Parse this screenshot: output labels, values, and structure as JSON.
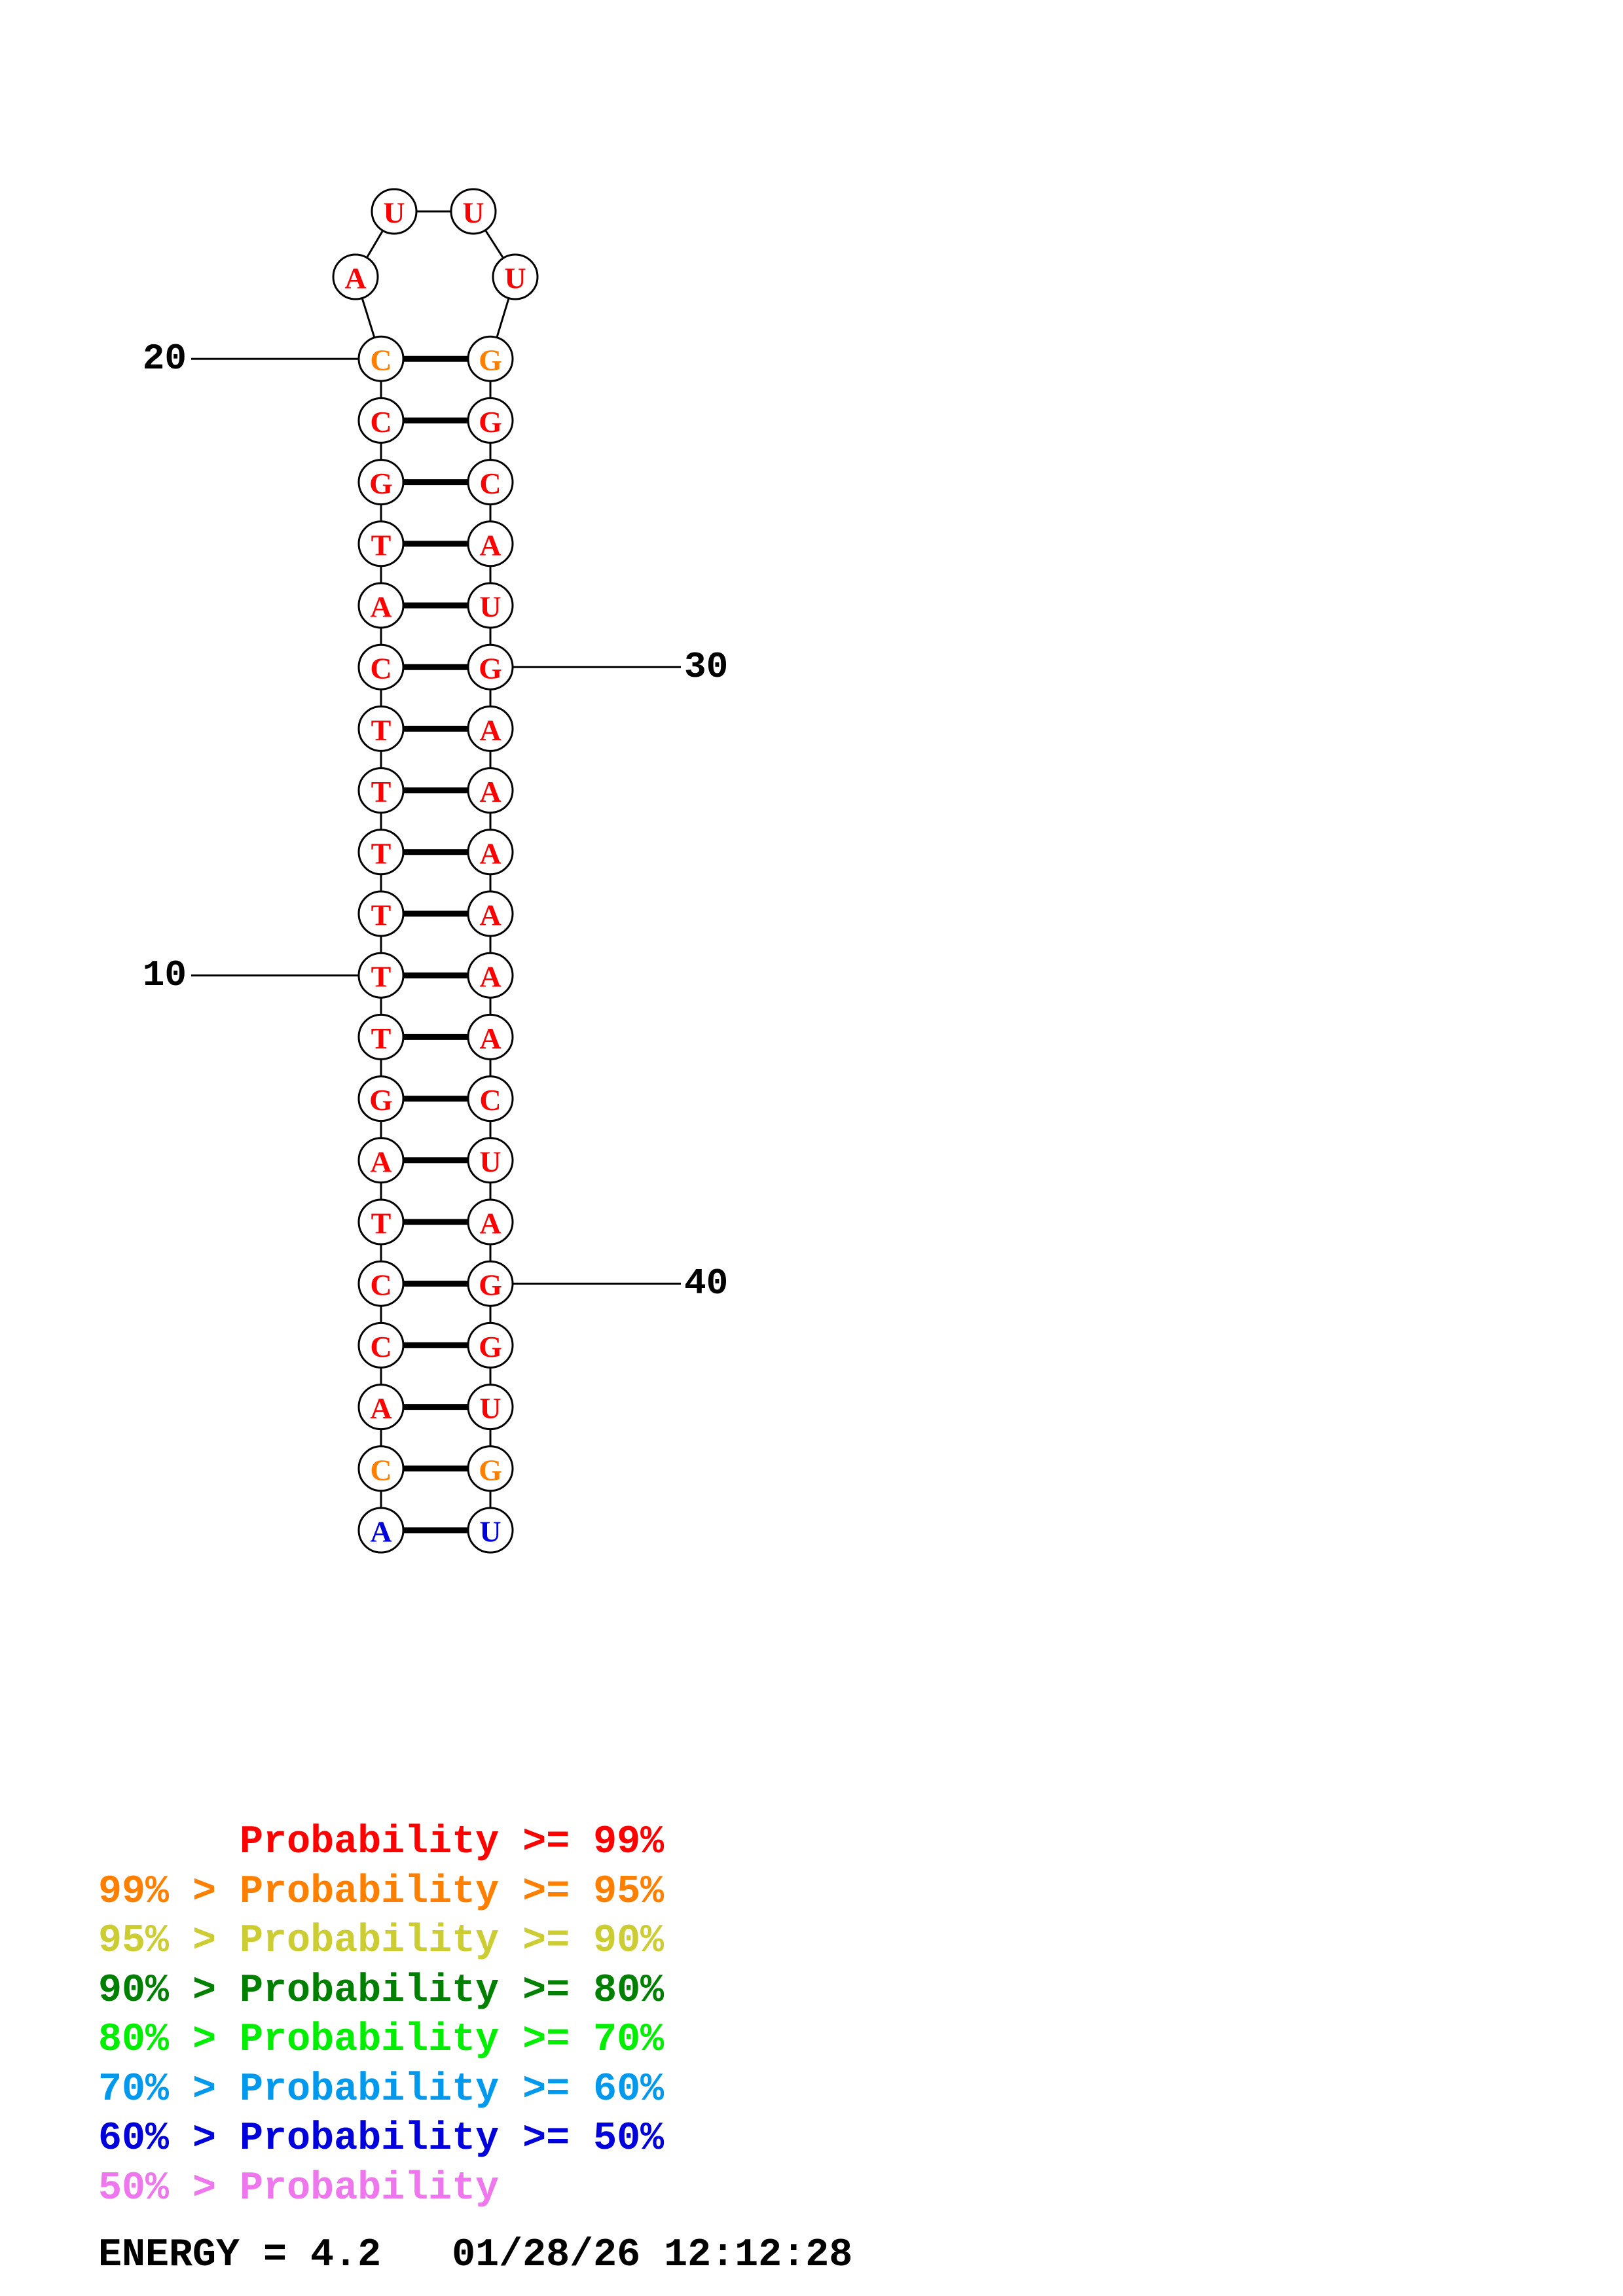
{
  "structure": {
    "left_strand": [
      {
        "index": 1,
        "base": "A",
        "level": 6
      },
      {
        "index": 2,
        "base": "C",
        "level": 1
      },
      {
        "index": 3,
        "base": "A",
        "level": 0
      },
      {
        "index": 4,
        "base": "C",
        "level": 0
      },
      {
        "index": 5,
        "base": "C",
        "level": 0
      },
      {
        "index": 6,
        "base": "T",
        "level": 0
      },
      {
        "index": 7,
        "base": "A",
        "level": 0
      },
      {
        "index": 8,
        "base": "G",
        "level": 0
      },
      {
        "index": 9,
        "base": "T",
        "level": 0
      },
      {
        "index": 10,
        "base": "T",
        "level": 0
      },
      {
        "index": 11,
        "base": "T",
        "level": 0
      },
      {
        "index": 12,
        "base": "T",
        "level": 0
      },
      {
        "index": 13,
        "base": "T",
        "level": 0
      },
      {
        "index": 14,
        "base": "T",
        "level": 0
      },
      {
        "index": 15,
        "base": "C",
        "level": 0
      },
      {
        "index": 16,
        "base": "A",
        "level": 0
      },
      {
        "index": 17,
        "base": "T",
        "level": 0
      },
      {
        "index": 18,
        "base": "G",
        "level": 0
      },
      {
        "index": 19,
        "base": "C",
        "level": 0
      },
      {
        "index": 20,
        "base": "C",
        "level": 1
      }
    ],
    "loop": [
      {
        "index": 21,
        "base": "A",
        "level": 0
      },
      {
        "index": 22,
        "base": "U",
        "level": 0
      },
      {
        "index": 23,
        "base": "U",
        "level": 0
      },
      {
        "index": 24,
        "base": "U",
        "level": 0
      }
    ],
    "right_strand": [
      {
        "index": 25,
        "base": "G",
        "level": 1
      },
      {
        "index": 26,
        "base": "G",
        "level": 0
      },
      {
        "index": 27,
        "base": "C",
        "level": 0
      },
      {
        "index": 28,
        "base": "A",
        "level": 0
      },
      {
        "index": 29,
        "base": "U",
        "level": 0
      },
      {
        "index": 30,
        "base": "G",
        "level": 0
      },
      {
        "index": 31,
        "base": "A",
        "level": 0
      },
      {
        "index": 32,
        "base": "A",
        "level": 0
      },
      {
        "index": 33,
        "base": "A",
        "level": 0
      },
      {
        "index": 34,
        "base": "A",
        "level": 0
      },
      {
        "index": 35,
        "base": "A",
        "level": 0
      },
      {
        "index": 36,
        "base": "A",
        "level": 0
      },
      {
        "index": 37,
        "base": "C",
        "level": 0
      },
      {
        "index": 38,
        "base": "U",
        "level": 0
      },
      {
        "index": 39,
        "base": "A",
        "level": 0
      },
      {
        "index": 40,
        "base": "G",
        "level": 0
      },
      {
        "index": 41,
        "base": "G",
        "level": 0
      },
      {
        "index": 42,
        "base": "U",
        "level": 0
      },
      {
        "index": 43,
        "base": "G",
        "level": 1
      },
      {
        "index": 44,
        "base": "U",
        "level": 6
      }
    ],
    "position_labels": [
      {
        "index": 10,
        "text": "10",
        "side": "left"
      },
      {
        "index": 20,
        "text": "20",
        "side": "left"
      },
      {
        "index": 30,
        "text": "30",
        "side": "right"
      },
      {
        "index": 40,
        "text": "40",
        "side": "right"
      }
    ]
  },
  "legend": {
    "rows": [
      {
        "lower": "",
        "mid": "Probability",
        "upper": ">= 99%",
        "color": "#ff0000"
      },
      {
        "lower": "99% >",
        "mid": "Probability",
        "upper": ">= 95%",
        "color": "#ff8000"
      },
      {
        "lower": "95% >",
        "mid": "Probability",
        "upper": ">= 90%",
        "color": "#cccc33"
      },
      {
        "lower": "90% >",
        "mid": "Probability",
        "upper": ">= 80%",
        "color": "#008000"
      },
      {
        "lower": "80% >",
        "mid": "Probability",
        "upper": ">= 70%",
        "color": "#00ee00"
      },
      {
        "lower": "70% >",
        "mid": "Probability",
        "upper": ">= 60%",
        "color": "#0099ee"
      },
      {
        "lower": "60% >",
        "mid": "Probability",
        "upper": ">= 50%",
        "color": "#0000dd"
      },
      {
        "lower": "50% >",
        "mid": "Probability",
        "upper": "",
        "color": "#ee77ee"
      }
    ]
  },
  "footer": {
    "energy_label": "ENERGY = 4.2",
    "timestamp": "01/28/26 12:12:28"
  }
}
